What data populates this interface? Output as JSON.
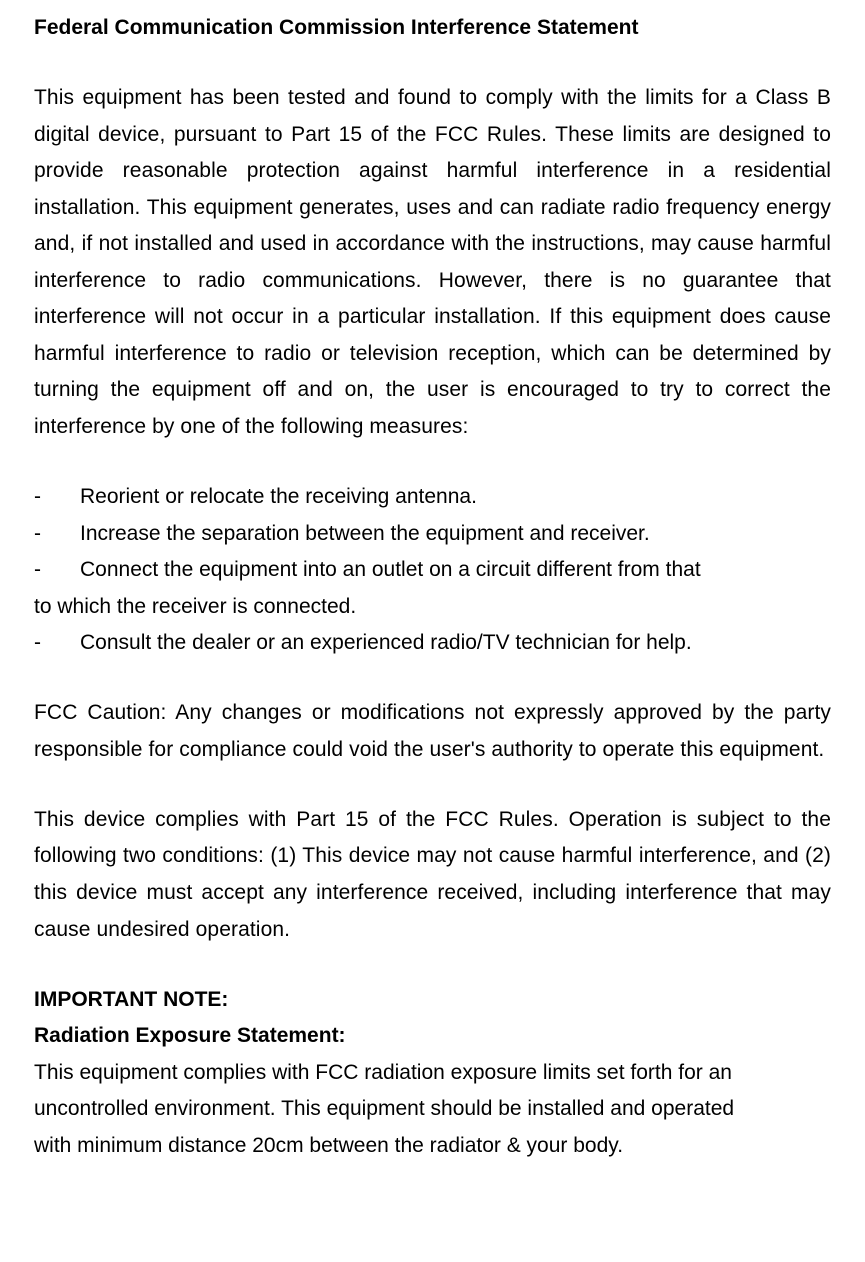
{
  "title": "Federal Communication Commission Interference Statement",
  "intro": "This equipment has been tested and found to comply with the limits for a Class B digital device, pursuant to Part 15 of the FCC Rules. These limits are designed to provide reasonable protection against harmful interference in a residential installation. This equipment generates, uses and can radiate radio frequency energy and, if not installed and used in accordance with the instructions, may cause harmful interference to radio communications. However, there is no guarantee that interference will not occur in a particular installation. If this equipment does cause harmful interference to radio or television reception, which can be determined by turning the equipment off and on, the user is encouraged to try to correct the interference by one of the following measures:",
  "bullets": {
    "b1": "Reorient or relocate the receiving antenna.",
    "b2": "Increase the separation between the equipment and receiver.",
    "b3": "Connect the equipment into an outlet on a circuit different from that",
    "b3cont": "to which the receiver is connected.",
    "b4": "Consult the dealer or an experienced radio/TV technician for help.",
    "dash": "-"
  },
  "fcc_caution": "FCC Caution: Any changes or modifications not expressly approved by the party responsible for compliance could void the user's authority to operate this equipment.",
  "part15": "This device complies with Part 15 of the FCC Rules. Operation is subject to the following two conditions: (1) This device may not cause harmful interference, and (2) this device must accept any interference received, including interference that may cause undesired operation.",
  "important_note": "IMPORTANT NOTE:",
  "radiation_label": "Radiation Exposure Statement:",
  "radiation_l1": "This equipment complies with FCC radiation exposure limits set forth for an",
  "radiation_l2": "uncontrolled environment. This equipment should be installed and operated",
  "radiation_l3": "with minimum distance 20cm between the radiator & your body."
}
